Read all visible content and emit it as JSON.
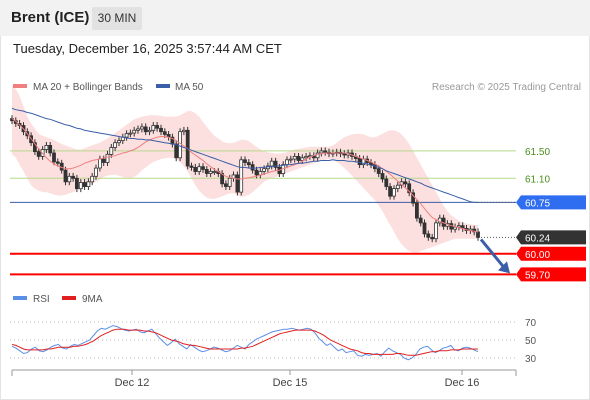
{
  "header": {
    "title": "Brent (ICE)",
    "timeframe": "30 MIN"
  },
  "datetime": "Tuesday, December 16, 2025 3:57:44 AM CET",
  "legend": {
    "ma20": "MA 20 + Bollinger Bands",
    "ma50": "MA 50",
    "credit": "Research © 2025 Trading Central"
  },
  "rsi_legend": {
    "rsi": "RSI",
    "ma9": "9MA"
  },
  "colors": {
    "bands": "#fcd9d9",
    "ma20": "#f08080",
    "ma50": "#3a5ea8",
    "green_level": "#b5d98a",
    "blue_badge": "#2f6ef0",
    "red_level": "#ff0000",
    "price_badge": "#333333",
    "rsi": "#5b8ee6",
    "rsi_ma": "#e02020"
  },
  "chart_data": [
    {
      "type": "candlestick",
      "title": "Brent (ICE)",
      "timeframe": "30 MIN",
      "x_ticks": [
        "Dec 12",
        "Dec 15",
        "Dec 16"
      ],
      "ylim": [
        59.4,
        62.3
      ],
      "levels": [
        {
          "value": 61.5,
          "label": "61.50",
          "style": "green"
        },
        {
          "value": 61.1,
          "label": "61.10",
          "style": "green"
        },
        {
          "value": 60.75,
          "label": "60.75",
          "style": "blue"
        },
        {
          "value": 60.24,
          "label": "60.24",
          "style": "last-price"
        },
        {
          "value": 60.0,
          "label": "60.00",
          "style": "red"
        },
        {
          "value": 59.7,
          "label": "59.70",
          "style": "red"
        }
      ],
      "close": [
        61.94,
        61.9,
        61.87,
        61.78,
        61.72,
        61.62,
        61.49,
        61.42,
        61.52,
        61.58,
        61.47,
        61.34,
        61.32,
        61.22,
        61.05,
        61.13,
        61.1,
        60.95,
        61.04,
        60.98,
        61.05,
        61.13,
        61.25,
        61.38,
        61.33,
        61.45,
        61.55,
        61.62,
        61.65,
        61.7,
        61.75,
        61.76,
        61.8,
        61.82,
        61.85,
        61.78,
        61.8,
        61.87,
        61.83,
        61.78,
        61.74,
        61.7,
        61.6,
        61.4,
        61.78,
        61.8,
        61.28,
        61.26,
        61.2,
        61.27,
        61.23,
        61.17,
        61.2,
        61.2,
        61.17,
        61.02,
        60.98,
        61.1,
        61.15,
        60.9,
        61.37,
        61.33,
        61.3,
        61.22,
        61.15,
        61.2,
        61.24,
        61.28,
        61.35,
        61.26,
        61.17,
        61.3,
        61.37,
        61.38,
        61.42,
        61.36,
        61.4,
        61.42,
        61.43,
        61.4,
        61.47,
        61.5,
        61.48,
        61.46,
        61.47,
        61.48,
        61.46,
        61.44,
        61.47,
        61.42,
        61.39,
        61.3,
        61.38,
        61.33,
        61.3,
        61.24,
        61.17,
        61.09,
        60.98,
        60.84,
        60.95,
        61.0,
        61.05,
        61.02,
        60.89,
        60.74,
        60.52,
        60.45,
        60.29,
        60.24,
        60.22,
        60.45,
        60.52,
        60.4,
        60.44,
        60.36,
        60.39,
        60.41,
        60.37,
        60.34,
        60.36,
        60.32,
        60.24
      ],
      "ma20": [
        61.97,
        61.93,
        61.88,
        61.82,
        61.75,
        61.68,
        61.6,
        61.53,
        61.46,
        61.4,
        61.35,
        61.31,
        61.28,
        61.26,
        61.24,
        61.24,
        61.25,
        61.27,
        61.29,
        61.32,
        61.34,
        61.36,
        61.37,
        61.38,
        61.4,
        61.41,
        61.42,
        61.43,
        61.45,
        61.47,
        61.48,
        61.5,
        61.52,
        61.55,
        61.59,
        61.63,
        61.66,
        61.68,
        61.7,
        61.71,
        61.71,
        61.7,
        61.68,
        61.65,
        61.61,
        61.57,
        61.53,
        61.48,
        61.44,
        61.4,
        61.36,
        61.31,
        61.27,
        61.23,
        61.2,
        61.16,
        61.13,
        61.11,
        61.1,
        61.09,
        61.09,
        61.1,
        61.11,
        61.12,
        61.13,
        61.15,
        61.16,
        61.18,
        61.2,
        61.21,
        61.22,
        61.24,
        61.26,
        61.28,
        61.3,
        61.32,
        61.35,
        61.38,
        61.41,
        61.43,
        61.45,
        61.46,
        61.47,
        61.47,
        61.47,
        61.47,
        61.47,
        61.47,
        61.46,
        61.44,
        61.42,
        61.4,
        61.38,
        61.36,
        61.34,
        61.31,
        61.28,
        61.24,
        61.2,
        61.16,
        61.11,
        61.06,
        61.01,
        60.96,
        60.91,
        60.85,
        60.79,
        60.73,
        60.66,
        60.59,
        60.53,
        60.5,
        60.47,
        60.45,
        60.43,
        60.41,
        60.4,
        60.38,
        60.37,
        60.35,
        60.34,
        60.33,
        60.32
      ],
      "ma50": [
        62.12,
        62.1,
        62.09,
        62.08,
        62.06,
        62.05,
        62.03,
        62.01,
        61.99,
        61.97,
        61.96,
        61.94,
        61.92,
        61.9,
        61.88,
        61.87,
        61.85,
        61.83,
        61.82,
        61.8,
        61.79,
        61.78,
        61.77,
        61.76,
        61.75,
        61.74,
        61.73,
        61.72,
        61.71,
        61.7,
        61.69,
        61.68,
        61.68,
        61.67,
        61.67,
        61.66,
        61.66,
        61.65,
        61.64,
        61.63,
        61.62,
        61.61,
        61.6,
        61.59,
        61.57,
        61.55,
        61.53,
        61.51,
        61.49,
        61.47,
        61.45,
        61.43,
        61.41,
        61.39,
        61.37,
        61.35,
        61.33,
        61.31,
        61.29,
        61.27,
        61.26,
        61.26,
        61.25,
        61.25,
        61.25,
        61.26,
        61.26,
        61.27,
        61.27,
        61.28,
        61.28,
        61.29,
        61.3,
        61.3,
        61.31,
        61.32,
        61.32,
        61.33,
        61.34,
        61.35,
        61.35,
        61.36,
        61.36,
        61.36,
        61.37,
        61.36,
        61.36,
        61.36,
        61.35,
        61.35,
        61.34,
        61.33,
        61.32,
        61.31,
        61.29,
        61.28,
        61.26,
        61.24,
        61.21,
        61.19,
        61.17,
        61.15,
        61.13,
        61.11,
        61.09,
        61.07,
        61.05,
        61.03,
        61.0,
        60.98,
        60.96,
        60.94,
        60.92,
        60.9,
        60.88,
        60.86,
        60.84,
        60.82,
        60.8,
        60.78,
        60.76,
        60.75,
        60.75
      ],
      "bb_upper": [
        62.45,
        62.4,
        62.3,
        62.15,
        62.0,
        61.9,
        61.82,
        61.75,
        61.72,
        61.7,
        61.68,
        61.66,
        61.63,
        61.6,
        61.58,
        61.56,
        61.54,
        61.52,
        61.52,
        61.54,
        61.56,
        61.58,
        61.6,
        61.62,
        61.65,
        61.68,
        61.72,
        61.76,
        61.8,
        61.84,
        61.88,
        61.92,
        61.96,
        61.98,
        62.0,
        62.01,
        62.02,
        62.02,
        62.02,
        62.01,
        62.0,
        62.0,
        62.0,
        62.0,
        62.02,
        62.05,
        62.08,
        62.08,
        62.05,
        62.0,
        61.92,
        61.85,
        61.78,
        61.72,
        61.68,
        61.64,
        61.62,
        61.61,
        61.62,
        61.64,
        61.66,
        61.66,
        61.64,
        61.6,
        61.56,
        61.52,
        61.5,
        61.48,
        61.47,
        61.46,
        61.46,
        61.47,
        61.48,
        61.5,
        61.52,
        61.53,
        61.54,
        61.55,
        61.56,
        61.56,
        61.56,
        61.56,
        61.56,
        61.56,
        61.58,
        61.62,
        61.66,
        61.7,
        61.72,
        61.74,
        61.75,
        61.75,
        61.74,
        61.72,
        61.7,
        61.7,
        61.72,
        61.75,
        61.78,
        61.8,
        61.8,
        61.78,
        61.74,
        61.68,
        61.6,
        61.5,
        61.4,
        61.3,
        61.2,
        61.1,
        61.0,
        60.9,
        60.8,
        60.7,
        60.62,
        60.56,
        60.52,
        60.48,
        60.46,
        60.44,
        60.43,
        60.42,
        60.42
      ],
      "bb_lower": [
        61.45,
        61.4,
        61.3,
        61.2,
        61.1,
        61.0,
        60.95,
        60.92,
        60.9,
        60.9,
        60.88,
        60.86,
        60.85,
        60.85,
        60.86,
        60.88,
        60.9,
        60.92,
        60.95,
        60.98,
        61.0,
        61.02,
        61.05,
        61.08,
        61.12,
        61.14,
        61.15,
        61.15,
        61.14,
        61.12,
        61.1,
        61.1,
        61.12,
        61.16,
        61.22,
        61.26,
        61.3,
        61.34,
        61.36,
        61.38,
        61.39,
        61.4,
        61.4,
        61.38,
        61.34,
        61.28,
        61.2,
        61.1,
        61.0,
        60.92,
        60.86,
        60.82,
        60.8,
        60.8,
        60.82,
        60.84,
        60.86,
        60.88,
        60.88,
        60.86,
        60.83,
        60.84,
        60.86,
        60.9,
        60.95,
        61.0,
        61.05,
        61.08,
        61.1,
        61.12,
        61.14,
        61.16,
        61.18,
        61.2,
        61.22,
        61.24,
        61.26,
        61.28,
        61.3,
        61.32,
        61.34,
        61.36,
        61.37,
        61.38,
        61.37,
        61.34,
        61.3,
        61.25,
        61.2,
        61.14,
        61.08,
        61.02,
        60.96,
        60.9,
        60.84,
        60.78,
        60.7,
        60.62,
        60.52,
        60.42,
        60.32,
        60.22,
        60.14,
        60.08,
        60.04,
        60.02,
        60.02,
        60.04,
        60.06,
        60.08,
        60.1,
        60.12,
        60.14,
        60.16,
        60.18,
        60.2,
        60.22,
        60.22,
        60.22,
        60.22,
        60.22,
        60.22,
        60.22
      ],
      "forecast_arrow": {
        "from": 60.24,
        "to": 59.7
      }
    },
    {
      "type": "line",
      "title": "RSI",
      "y_ticks": [
        70,
        50,
        30
      ],
      "ylim": [
        20,
        80
      ],
      "series": [
        {
          "name": "RSI",
          "values": [
            43,
            41,
            38,
            35,
            36,
            40,
            42,
            38,
            37,
            39,
            42,
            44,
            45,
            41,
            40,
            43,
            45,
            44,
            46,
            48,
            50,
            55,
            60,
            63,
            62,
            64,
            66,
            65,
            63,
            61,
            60,
            61,
            62,
            59,
            58,
            60,
            62,
            57,
            52,
            48,
            44,
            47,
            51,
            46,
            43,
            40,
            45,
            42,
            39,
            37,
            38,
            40,
            42,
            41,
            39,
            37,
            38,
            41,
            44,
            42,
            40,
            45,
            48,
            51,
            53,
            55,
            57,
            59,
            60,
            61,
            62,
            62,
            63,
            62,
            61,
            62,
            63,
            62,
            58,
            52,
            48,
            44,
            46,
            42,
            38,
            40,
            36,
            37,
            38,
            33,
            32,
            34,
            33,
            34,
            35,
            32,
            37,
            41,
            38,
            36,
            34,
            30,
            28,
            30,
            34,
            40,
            42,
            43,
            39,
            36,
            38,
            41,
            42,
            44,
            39,
            38,
            41,
            42,
            41,
            39,
            37
          ]
        },
        {
          "name": "9MA",
          "values": [
            45,
            44,
            42,
            40,
            39,
            39,
            39,
            39,
            39,
            40,
            40,
            41,
            42,
            42,
            42,
            42,
            43,
            43,
            44,
            45,
            47,
            49,
            52,
            55,
            57,
            59,
            61,
            62,
            62,
            62,
            61,
            61,
            61,
            61,
            60,
            60,
            59,
            58,
            56,
            54,
            52,
            50,
            49,
            48,
            46,
            45,
            44,
            44,
            43,
            42,
            41,
            40,
            40,
            40,
            40,
            40,
            40,
            40,
            40,
            41,
            41,
            42,
            43,
            45,
            47,
            49,
            51,
            53,
            55,
            57,
            58,
            59,
            60,
            61,
            61,
            61,
            61,
            61,
            60,
            58,
            56,
            53,
            50,
            48,
            46,
            44,
            42,
            40,
            39,
            38,
            36,
            35,
            35,
            34,
            34,
            34,
            34,
            34,
            34,
            35,
            35,
            34,
            33,
            33,
            33,
            34,
            35,
            36,
            37,
            37,
            38,
            38,
            38,
            39,
            39,
            39,
            40,
            40,
            40,
            40,
            40
          ]
        }
      ]
    }
  ]
}
